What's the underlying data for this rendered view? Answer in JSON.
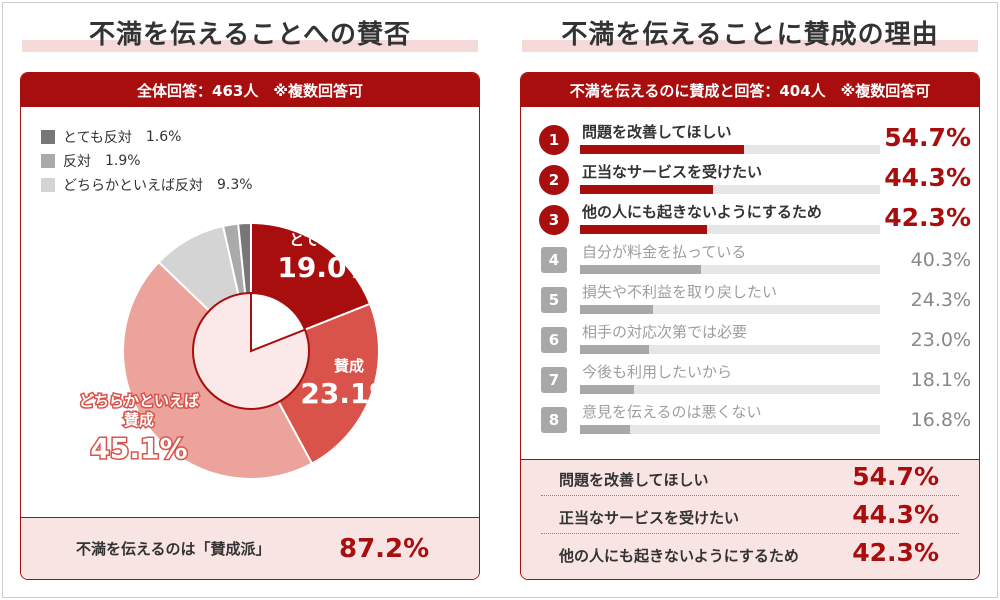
{
  "left": {
    "title": "不満を伝えることへの賛否",
    "header": "全体回答：463人　※複数回答可",
    "summary_label": "不満を伝えるのは「賛成派」",
    "summary_value": "87.2%"
  },
  "right": {
    "title": "不満を伝えることに賛成の理由",
    "header": "不満を伝えるのに賛成と回答：404人　※複数回答可",
    "top3": [
      {
        "label": "問題を改善してほしい",
        "value": "54.7%"
      },
      {
        "label": "正当なサービスを受けたい",
        "value": "44.3%"
      },
      {
        "label": "他の人にも起きないようにするため",
        "value": "42.3%"
      }
    ]
  },
  "colors": {
    "dark_red": "#a80e0e",
    "mid_red": "#d9534a",
    "light_red": "#eba39c",
    "gray_dark": "#777777",
    "gray_mid": "#aaaaaa",
    "gray_light": "#d4d4d4"
  },
  "chart_data": [
    {
      "type": "pie",
      "title": "",
      "slices": [
        {
          "label": "とても賛成",
          "value": 19.0,
          "display": "19.0%",
          "color": "#a80e0e"
        },
        {
          "label": "賛成",
          "value": 23.1,
          "display": "23.1%",
          "color": "#d9534a"
        },
        {
          "label": "どちらかといえば賛成",
          "value": 45.1,
          "display": "45.1%",
          "color": "#eba39c"
        },
        {
          "label": "どちらかといえば反対",
          "value": 9.3,
          "display": "9.3%",
          "color": "#d4d4d4"
        },
        {
          "label": "反対",
          "value": 1.9,
          "display": "1.9%",
          "color": "#aaaaaa"
        },
        {
          "label": "とても反対",
          "value": 1.6,
          "display": "1.6%",
          "color": "#777777"
        }
      ],
      "legend": [
        {
          "label": "とても反対",
          "value": "1.6%",
          "color": "#777777"
        },
        {
          "label": "反対",
          "value": "1.9%",
          "color": "#aaaaaa"
        },
        {
          "label": "どちらかといえば反対",
          "value": "9.3%",
          "color": "#d4d4d4"
        }
      ],
      "legend_position": "top-left"
    },
    {
      "type": "bar",
      "orientation": "horizontal",
      "title": "",
      "xlim": [
        0,
        100
      ],
      "categories": [
        "問題を改善してほしい",
        "正当なサービスを受けたい",
        "他の人にも起きないようにするため",
        "自分が料金を払っている",
        "損失や不利益を取り戻したい",
        "相手の対応次第では必要",
        "今後も利用したいから",
        "意見を伝えるのは悪くない"
      ],
      "ranks": [
        "1",
        "2",
        "3",
        "4",
        "5",
        "6",
        "7",
        "8"
      ],
      "values": [
        54.7,
        44.3,
        42.3,
        40.3,
        24.3,
        23.0,
        18.1,
        16.8
      ],
      "labels": [
        "54.7%",
        "44.3%",
        "42.3%",
        "40.3%",
        "24.3%",
        "23.0%",
        "18.1%",
        "16.8%"
      ]
    }
  ]
}
